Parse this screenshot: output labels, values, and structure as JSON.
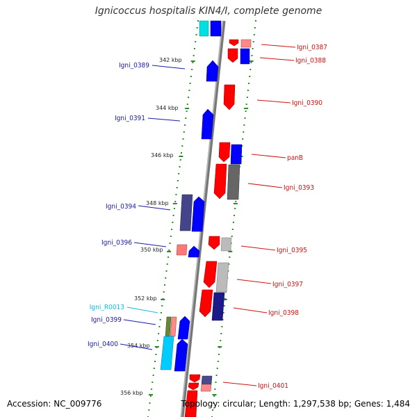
{
  "title": "Ignicoccus hospitalis KIN4/I, complete genome",
  "footer": {
    "accession": "Accession: NC_009776",
    "topology": "Topology: circular;",
    "length": "Length: 1,297,538 bp;",
    "genes": "Genes: 1,484"
  },
  "colors": {
    "forward": "#0000ff",
    "reverse": "#ff0000",
    "rna": "#00cccc",
    "forward_label": "#1a1aa6",
    "reverse_label": "#cc1111",
    "rna_label": "#11bbdd",
    "ticks": "#2a8a2a",
    "axis": "#888888"
  },
  "ticks": [
    "342 kbp",
    "344 kbp",
    "346 kbp",
    "348 kbp",
    "350 kbp",
    "352 kbp",
    "354 kbp",
    "356 kbp"
  ],
  "left_labels": [
    "Igni_0389",
    "Igni_0391",
    "Igni_0394",
    "Igni_0396",
    "Igni_R0013",
    "Igni_0399",
    "Igni_0400"
  ],
  "right_labels": [
    "Igni_0387",
    "Igni_0388",
    "Igni_0390",
    "panB",
    "Igni_0393",
    "Igni_0395",
    "Igni_0397",
    "Igni_0398",
    "Igni_0401"
  ]
}
